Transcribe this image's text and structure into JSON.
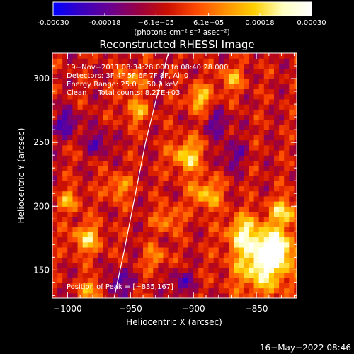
{
  "chart_data": {
    "type": "heatmap",
    "title": "Reconstructed RHESSI Image",
    "xlabel": "Heliocentric X (arcsec)",
    "ylabel": "Heliocentric Y (arcsec)",
    "xlim": [
      -1012,
      -818
    ],
    "ylim": [
      128,
      320
    ],
    "x_ticks": [
      -1000,
      -950,
      -900,
      -850
    ],
    "x_tick_labels": [
      "−1000",
      "−950",
      "−900",
      "−850"
    ],
    "y_ticks": [
      150,
      200,
      250,
      300
    ],
    "y_tick_labels": [
      "150",
      "200",
      "250",
      "300"
    ],
    "colorbar": {
      "range": [
        -0.0003,
        0.0003
      ],
      "ticks": [
        -0.0003,
        -0.00018,
        -6.1e-05,
        6.1e-05,
        0.00018,
        0.0003
      ],
      "tick_labels": [
        "-0.00030",
        "-0.00018",
        "−6.1e−05",
        "6.1e−05",
        "0.00018",
        "0.00030"
      ],
      "unit_label": "(photons cm⁻² s⁻¹ asec⁻²)",
      "colormap": [
        "#0000ff",
        "#3a00c0",
        "#6a0090",
        "#9a0040",
        "#cc1000",
        "#ff4a00",
        "#ff9000",
        "#ffd000",
        "#ffffc0",
        "#ffffff"
      ]
    },
    "annotations": {
      "time_range": "19−Nov−2011 08:34:28.000 to 08:40:28.000",
      "detectors": "Detectors: 3F 4F 5F 6F 7F 8F, All 0",
      "energy_range": "Energy Range: 25.0 − 50.0 keV",
      "method": "Clean     Total counts: 8.27E+03",
      "peak": "Position of Peak = [−835,167]"
    },
    "peak_position": [
      -835,
      167
    ],
    "limb_curve": [
      [
        -963,
        128
      ],
      [
        -955,
        165
      ],
      [
        -948,
        200
      ],
      [
        -938,
        250
      ],
      [
        -928,
        290
      ],
      [
        -920,
        320
      ]
    ],
    "blobs": [
      {
        "x": -845,
        "y": 155,
        "r": 22,
        "v": 0.0003
      },
      {
        "x": -835,
        "y": 167,
        "r": 12,
        "v": 0.0003
      },
      {
        "x": -860,
        "y": 180,
        "r": 14,
        "v": 0.00022
      },
      {
        "x": -828,
        "y": 195,
        "r": 12,
        "v": 0.00022
      },
      {
        "x": -890,
        "y": 210,
        "r": 12,
        "v": 0.0002
      },
      {
        "x": -905,
        "y": 240,
        "r": 13,
        "v": 0.00022
      },
      {
        "x": -895,
        "y": 285,
        "r": 10,
        "v": 0.0002
      },
      {
        "x": -870,
        "y": 300,
        "r": 10,
        "v": 0.00016
      },
      {
        "x": -980,
        "y": 135,
        "r": 9,
        "v": 0.00018
      },
      {
        "x": -985,
        "y": 175,
        "r": 12,
        "v": 0.0002
      },
      {
        "x": -998,
        "y": 205,
        "r": 9,
        "v": 0.00016
      },
      {
        "x": -960,
        "y": 215,
        "r": 10,
        "v": 0.00016
      },
      {
        "x": -945,
        "y": 275,
        "r": 10,
        "v": 0.00016
      },
      {
        "x": -950,
        "y": 300,
        "r": 10,
        "v": 0.00014
      },
      {
        "x": -930,
        "y": 160,
        "r": 9,
        "v": 0.00014
      },
      {
        "x": -920,
        "y": 190,
        "r": 10,
        "v": 0.00015
      },
      {
        "x": -975,
        "y": 250,
        "r": 9,
        "v": -0.00016
      },
      {
        "x": -1000,
        "y": 265,
        "r": 10,
        "v": -0.00018
      },
      {
        "x": -960,
        "y": 140,
        "r": 10,
        "v": -0.00018
      },
      {
        "x": -910,
        "y": 140,
        "r": 10,
        "v": -0.00014
      },
      {
        "x": -870,
        "y": 240,
        "r": 12,
        "v": -0.00012
      },
      {
        "x": -880,
        "y": 265,
        "r": 10,
        "v": -0.00014
      }
    ]
  },
  "footer": {
    "date": "16−May−2022 08:46"
  }
}
